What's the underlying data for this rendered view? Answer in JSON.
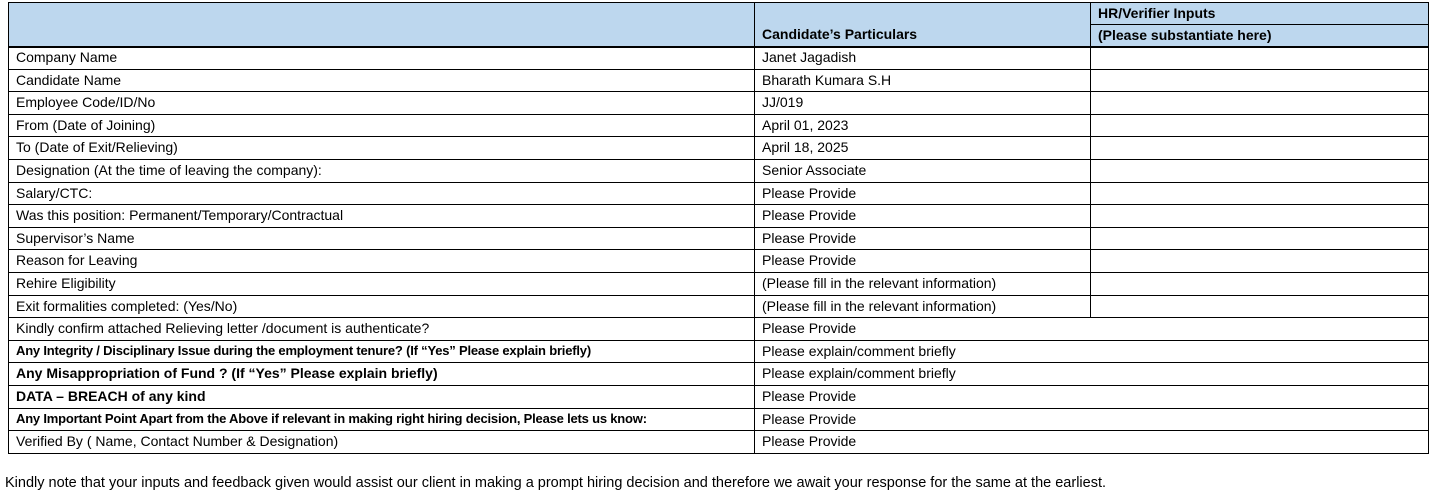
{
  "table": {
    "header": {
      "col1": "",
      "col2": "Candidate’s Particulars",
      "col3_top": "HR/Verifier Inputs",
      "col3_bottom": "(Please substantiate here)"
    },
    "rows": [
      {
        "label": "Company Name",
        "value": "Janet Jagadish",
        "bold": false,
        "merged": false,
        "hr_input": ""
      },
      {
        "label": "Candidate Name",
        "value": "Bharath Kumara S.H",
        "bold": false,
        "merged": false,
        "hr_input": ""
      },
      {
        "label": "Employee Code/ID/No",
        "value": "JJ/019",
        "bold": false,
        "merged": false,
        "hr_input": ""
      },
      {
        "label": "From (Date of Joining)",
        "value": "April 01, 2023",
        "bold": false,
        "merged": false,
        "hr_input": ""
      },
      {
        "label": "To (Date of Exit/Relieving)",
        "value": "April 18, 2025",
        "bold": false,
        "merged": false,
        "hr_input": ""
      },
      {
        "label": "Designation (At the time of leaving the company):",
        "value": "Senior Associate",
        "bold": false,
        "merged": false,
        "hr_input": ""
      },
      {
        "label": "Salary/CTC:",
        "value": "Please Provide",
        "bold": false,
        "merged": false,
        "hr_input": ""
      },
      {
        "label": "Was this position: Permanent/Temporary/Contractual",
        "value": "Please Provide",
        "bold": false,
        "merged": false,
        "hr_input": ""
      },
      {
        "label": "Supervisor’s Name",
        "value": "Please Provide",
        "bold": false,
        "merged": false,
        "hr_input": ""
      },
      {
        "label": "Reason for Leaving",
        "value": "Please Provide",
        "bold": false,
        "merged": false,
        "hr_input": ""
      },
      {
        "label": "Rehire Eligibility",
        "value": "(Please fill in the relevant information)",
        "bold": false,
        "merged": false,
        "hr_input": ""
      },
      {
        "label": "Exit formalities completed: (Yes/No)",
        "value": "(Please fill in the relevant information)",
        "bold": false,
        "merged": false,
        "hr_input": ""
      },
      {
        "label": "Kindly confirm attached Relieving letter /document is authenticate?",
        "value": "Please Provide",
        "bold": false,
        "merged": true
      },
      {
        "label": "Any Integrity / Disciplinary Issue during the employment tenure? (If “Yes” Please explain briefly)",
        "value": "Please explain/comment briefly",
        "bold": true,
        "merged": true
      },
      {
        "label": "Any Misappropriation of Fund ? (If “Yes” Please explain briefly)",
        "value": "Please explain/comment briefly",
        "bold": true,
        "merged": true
      },
      {
        "label": "DATA – BREACH of any kind",
        "value": "Please Provide",
        "bold": true,
        "merged": true
      },
      {
        "label": "Any Important Point Apart from the Above if relevant in making right hiring decision, Please lets us know:",
        "value": "Please Provide",
        "bold": true,
        "merged": true
      },
      {
        "label": "Verified By ( Name, Contact Number & Designation)",
        "value": "Please Provide",
        "bold": false,
        "merged": true
      }
    ]
  },
  "footer": {
    "note": "Kindly note that your inputs and feedback given would assist our client in making a prompt hiring decision and therefore we await your response for the same at the earliest."
  },
  "colors": {
    "header_bg": "#BDD7EE",
    "border": "#000000",
    "text": "#000000"
  }
}
